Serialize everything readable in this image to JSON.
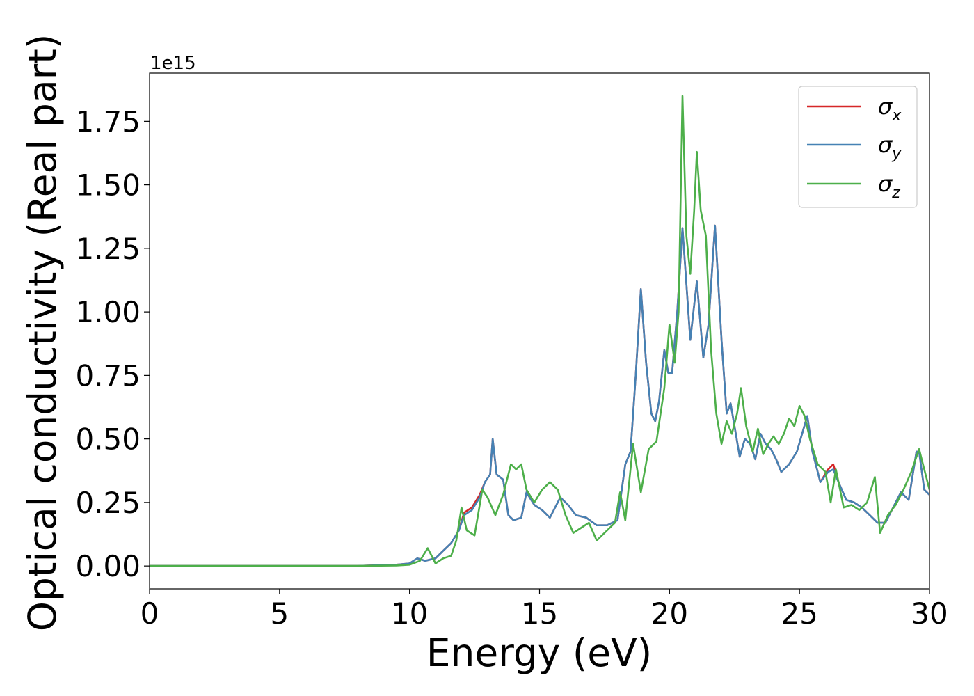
{
  "chart_data": {
    "type": "line",
    "title": "",
    "xlabel": "Energy (eV)",
    "ylabel": "Optical conductivity (Real part)",
    "y_offset_label": "1e15",
    "y_scale": 1000000000000000.0,
    "xlim": [
      0,
      30
    ],
    "ylim": [
      -0.09,
      1.94
    ],
    "x_ticks": [
      0,
      5,
      10,
      15,
      20,
      25,
      30
    ],
    "x_tick_labels": [
      "0",
      "5",
      "10",
      "15",
      "20",
      "25",
      "30"
    ],
    "y_ticks": [
      0.0,
      0.25,
      0.5,
      0.75,
      1.0,
      1.25,
      1.5,
      1.75
    ],
    "y_tick_labels": [
      "0.00",
      "0.25",
      "0.50",
      "0.75",
      "1.00",
      "1.25",
      "1.50",
      "1.75"
    ],
    "grid": false,
    "legend_position": "top-right",
    "series": [
      {
        "name": "σ_x",
        "legend_base": "σ",
        "legend_sub": "x",
        "color": "#d62728",
        "x": [
          0,
          8,
          9.5,
          10,
          10.3,
          10.6,
          11.0,
          11.3,
          11.6,
          11.9,
          12.1,
          12.4,
          12.7,
          12.9,
          13.1,
          13.2,
          13.35,
          13.6,
          13.8,
          14.0,
          14.3,
          14.5,
          14.8,
          15.1,
          15.4,
          15.6,
          15.8,
          16.1,
          16.4,
          16.8,
          17.2,
          17.6,
          18.0,
          18.3,
          18.5,
          18.7,
          18.9,
          19.1,
          19.3,
          19.45,
          19.6,
          19.8,
          19.95,
          20.1,
          20.3,
          20.5,
          20.8,
          21.05,
          21.3,
          21.5,
          21.75,
          22.0,
          22.2,
          22.35,
          22.5,
          22.7,
          22.9,
          23.1,
          23.3,
          23.5,
          23.7,
          23.9,
          24.1,
          24.3,
          24.6,
          24.9,
          25.1,
          25.3,
          25.5,
          25.8,
          26.1,
          26.3,
          26.5,
          26.8,
          27.1,
          27.4,
          27.7,
          28.0,
          28.3,
          28.6,
          28.9,
          29.2,
          29.5,
          29.6,
          29.8,
          30.0
        ],
        "y": [
          0.0,
          0.0,
          0.005,
          0.01,
          0.03,
          0.02,
          0.03,
          0.06,
          0.09,
          0.14,
          0.21,
          0.23,
          0.28,
          0.33,
          0.36,
          0.5,
          0.36,
          0.34,
          0.2,
          0.18,
          0.19,
          0.29,
          0.24,
          0.22,
          0.19,
          0.23,
          0.27,
          0.24,
          0.2,
          0.19,
          0.16,
          0.16,
          0.18,
          0.4,
          0.45,
          0.75,
          1.09,
          0.8,
          0.6,
          0.57,
          0.65,
          0.85,
          0.76,
          0.76,
          1.0,
          1.33,
          0.89,
          1.12,
          0.82,
          0.95,
          1.34,
          0.89,
          0.6,
          0.64,
          0.55,
          0.43,
          0.5,
          0.48,
          0.42,
          0.52,
          0.48,
          0.46,
          0.42,
          0.37,
          0.4,
          0.45,
          0.52,
          0.59,
          0.45,
          0.33,
          0.38,
          0.4,
          0.33,
          0.26,
          0.25,
          0.23,
          0.2,
          0.17,
          0.17,
          0.23,
          0.29,
          0.26,
          0.45,
          0.45,
          0.3,
          0.28
        ]
      },
      {
        "name": "σ_y",
        "legend_base": "σ",
        "legend_sub": "y",
        "color": "#4682b4",
        "x": [
          0,
          8,
          9.5,
          10,
          10.3,
          10.6,
          11.0,
          11.3,
          11.6,
          11.9,
          12.1,
          12.4,
          12.7,
          12.9,
          13.1,
          13.2,
          13.35,
          13.6,
          13.8,
          14.0,
          14.3,
          14.5,
          14.8,
          15.1,
          15.4,
          15.6,
          15.8,
          16.1,
          16.4,
          16.8,
          17.2,
          17.6,
          18.0,
          18.3,
          18.5,
          18.7,
          18.9,
          19.1,
          19.3,
          19.45,
          19.6,
          19.8,
          19.95,
          20.1,
          20.3,
          20.5,
          20.8,
          21.05,
          21.3,
          21.5,
          21.75,
          22.0,
          22.2,
          22.35,
          22.5,
          22.7,
          22.9,
          23.1,
          23.3,
          23.5,
          23.7,
          23.9,
          24.1,
          24.3,
          24.6,
          24.9,
          25.1,
          25.3,
          25.5,
          25.8,
          26.1,
          26.3,
          26.5,
          26.8,
          27.1,
          27.4,
          27.7,
          28.0,
          28.3,
          28.6,
          28.9,
          29.2,
          29.5,
          29.6,
          29.8,
          30.0
        ],
        "y": [
          0.0,
          0.0,
          0.005,
          0.01,
          0.03,
          0.02,
          0.03,
          0.06,
          0.09,
          0.14,
          0.2,
          0.22,
          0.27,
          0.33,
          0.36,
          0.5,
          0.36,
          0.34,
          0.2,
          0.18,
          0.19,
          0.29,
          0.24,
          0.22,
          0.19,
          0.23,
          0.27,
          0.24,
          0.2,
          0.19,
          0.16,
          0.16,
          0.18,
          0.4,
          0.45,
          0.75,
          1.09,
          0.8,
          0.6,
          0.57,
          0.65,
          0.85,
          0.76,
          0.76,
          1.0,
          1.33,
          0.89,
          1.12,
          0.82,
          0.95,
          1.34,
          0.89,
          0.6,
          0.64,
          0.55,
          0.43,
          0.5,
          0.48,
          0.42,
          0.52,
          0.48,
          0.46,
          0.42,
          0.37,
          0.4,
          0.45,
          0.52,
          0.59,
          0.45,
          0.33,
          0.37,
          0.38,
          0.33,
          0.26,
          0.25,
          0.23,
          0.2,
          0.17,
          0.17,
          0.23,
          0.29,
          0.26,
          0.45,
          0.45,
          0.3,
          0.28
        ]
      },
      {
        "name": "σ_z",
        "legend_base": "σ",
        "legend_sub": "z",
        "color": "#4daf4a",
        "x": [
          0,
          8,
          9.5,
          10,
          10.4,
          10.7,
          11.0,
          11.3,
          11.6,
          11.8,
          12.0,
          12.2,
          12.5,
          12.8,
          13.0,
          13.3,
          13.6,
          13.9,
          14.1,
          14.3,
          14.5,
          14.8,
          15.1,
          15.4,
          15.7,
          16.0,
          16.3,
          16.6,
          16.9,
          17.2,
          17.6,
          17.9,
          18.1,
          18.3,
          18.6,
          18.9,
          19.2,
          19.5,
          19.8,
          20.0,
          20.2,
          20.35,
          20.5,
          20.65,
          20.8,
          20.95,
          21.05,
          21.2,
          21.4,
          21.6,
          21.8,
          22.0,
          22.2,
          22.4,
          22.6,
          22.75,
          22.95,
          23.2,
          23.4,
          23.6,
          23.8,
          24.0,
          24.2,
          24.4,
          24.6,
          24.8,
          25.0,
          25.2,
          25.4,
          25.7,
          26.0,
          26.2,
          26.4,
          26.7,
          27.0,
          27.3,
          27.6,
          27.9,
          28.1,
          28.4,
          28.7,
          29.0,
          29.3,
          29.6,
          29.8,
          30.0
        ],
        "y": [
          0.0,
          0.0,
          0.002,
          0.005,
          0.02,
          0.07,
          0.01,
          0.03,
          0.04,
          0.1,
          0.23,
          0.14,
          0.12,
          0.3,
          0.27,
          0.2,
          0.28,
          0.4,
          0.38,
          0.4,
          0.3,
          0.25,
          0.3,
          0.33,
          0.3,
          0.2,
          0.13,
          0.15,
          0.17,
          0.1,
          0.14,
          0.17,
          0.29,
          0.18,
          0.48,
          0.29,
          0.46,
          0.49,
          0.7,
          0.95,
          0.8,
          1.0,
          1.85,
          1.3,
          1.15,
          1.4,
          1.63,
          1.4,
          1.3,
          0.85,
          0.6,
          0.48,
          0.57,
          0.52,
          0.6,
          0.7,
          0.55,
          0.45,
          0.54,
          0.44,
          0.48,
          0.51,
          0.48,
          0.52,
          0.58,
          0.55,
          0.63,
          0.59,
          0.5,
          0.4,
          0.37,
          0.25,
          0.38,
          0.23,
          0.24,
          0.22,
          0.25,
          0.35,
          0.13,
          0.2,
          0.24,
          0.3,
          0.37,
          0.46,
          0.38,
          0.3
        ]
      }
    ]
  }
}
